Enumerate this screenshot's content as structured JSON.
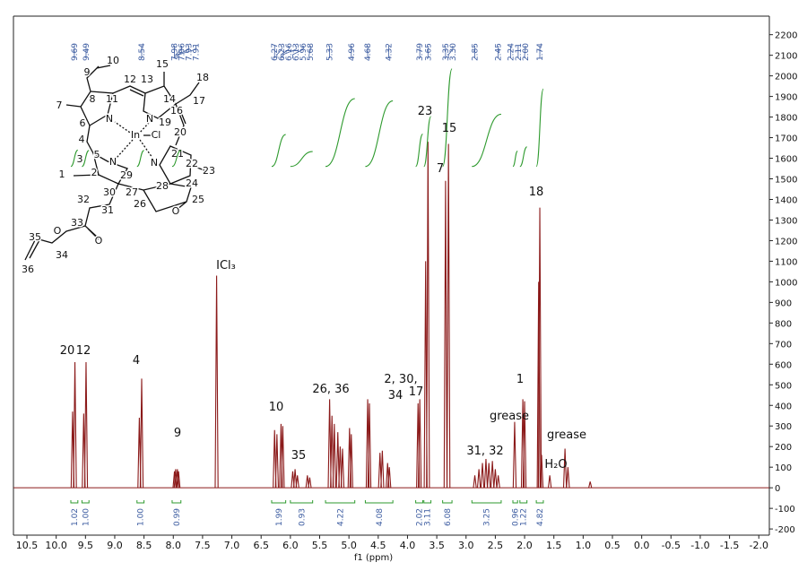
{
  "chart_data": {
    "type": "nmr",
    "x_label": "f1 (ppm)",
    "xlim": [
      10.73,
      -2.18
    ],
    "ylim": [
      -230,
      2290
    ],
    "xticks": [
      10.5,
      {
        "value": 10,
        "label": "10.0"
      },
      9.5,
      {
        "value": 9,
        "label": "9.0"
      },
      8.5,
      {
        "value": 8,
        "label": "8.0"
      },
      7.5,
      {
        "value": 7,
        "label": "7.0"
      },
      6.5,
      {
        "value": 6,
        "label": "6.0"
      },
      5.5,
      {
        "value": 5,
        "label": "5.0"
      },
      4.5,
      {
        "value": 4,
        "label": "4.0"
      },
      3.5,
      {
        "value": 3,
        "label": "3.0"
      },
      2.5,
      {
        "value": 2,
        "label": "2.0"
      },
      1.5,
      {
        "value": 1,
        "label": "1.0"
      },
      0.5,
      {
        "value": 0,
        "label": "0.0"
      },
      -0.5,
      {
        "value": -1,
        "label": "-1.0"
      },
      -1.5,
      {
        "value": -2,
        "label": "-2.0"
      }
    ],
    "yticks": [
      -200,
      -100,
      0,
      100,
      200,
      300,
      400,
      500,
      600,
      700,
      800,
      900,
      1000,
      1100,
      1200,
      1300,
      1400,
      1500,
      1600,
      1700,
      1800,
      1900,
      2000,
      2100,
      2200
    ],
    "color": "#8b1a1a",
    "x": [
      9.72,
      9.68,
      9.53,
      9.49,
      8.58,
      8.54,
      7.98,
      7.96,
      7.93,
      7.91,
      7.26,
      6.27,
      6.23,
      6.16,
      6.13,
      5.96,
      5.92,
      5.88,
      5.71,
      5.67,
      5.33,
      5.29,
      5.25,
      5.19,
      5.15,
      5.11,
      4.99,
      4.96,
      4.68,
      4.65,
      4.47,
      4.43,
      4.34,
      4.31,
      3.82,
      3.79,
      3.69,
      3.65,
      3.35,
      3.3,
      2.85,
      2.78,
      2.72,
      2.66,
      2.61,
      2.55,
      2.5,
      2.45,
      2.17,
      2.03,
      2.0,
      1.76,
      1.74,
      1.71,
      1.57,
      1.31,
      1.26,
      0.88
    ],
    "values": [
      370,
      610,
      360,
      610,
      340,
      530,
      80,
      90,
      90,
      80,
      1030,
      280,
      260,
      310,
      300,
      80,
      90,
      60,
      60,
      50,
      430,
      350,
      310,
      270,
      200,
      190,
      290,
      260,
      430,
      410,
      170,
      180,
      120,
      100,
      410,
      430,
      1100,
      1680,
      1490,
      1670,
      60,
      90,
      120,
      140,
      120,
      130,
      90,
      60,
      320,
      430,
      420,
      1000,
      1360,
      160,
      60,
      190,
      100,
      30
    ],
    "peak_labels": [
      9.69,
      9.49,
      8.54,
      7.98,
      7.96,
      7.93,
      7.91,
      6.27,
      6.23,
      6.16,
      6.13,
      5.96,
      5.68,
      5.33,
      4.96,
      4.68,
      4.32,
      3.79,
      3.65,
      3.35,
      {
        "value": 3.3,
        "label": "3.30"
      },
      2.85,
      2.45,
      2.24,
      2.11,
      {
        "value": 2,
        "label": "2.00"
      },
      1.74
    ],
    "integrals": [
      {
        "value": 1.02,
        "from": 9.75,
        "to": 9.63
      },
      {
        "value": 1,
        "label": "1.00",
        "from": 9.56,
        "to": 9.44
      },
      {
        "value": 1,
        "label": "1.00",
        "from": 8.62,
        "to": 8.5
      },
      {
        "value": 0.99,
        "from": 8.02,
        "to": 7.87
      },
      {
        "value": 1.99,
        "from": 6.32,
        "to": 6.08
      },
      {
        "value": 0.93,
        "from": 6.0,
        "to": 5.62
      },
      {
        "value": 4.22,
        "from": 5.4,
        "to": 4.9
      },
      {
        "value": 4.08,
        "from": 4.72,
        "to": 4.25
      },
      {
        "value": 2.02,
        "from": 3.86,
        "to": 3.74
      },
      {
        "value": 3.11,
        "from": 3.72,
        "to": 3.6
      },
      {
        "value": 6.08,
        "from": 3.4,
        "to": 3.24
      },
      {
        "value": 3.25,
        "from": 2.9,
        "to": 2.4
      },
      {
        "value": 0.96,
        "from": 2.2,
        "to": 2.12
      },
      {
        "value": 1.22,
        "from": 2.08,
        "to": 1.96
      },
      {
        "value": 4.82,
        "from": 1.8,
        "to": 1.68
      }
    ],
    "annotations": [
      "20",
      "12",
      "4",
      "9",
      "ICl₃",
      "10",
      "35",
      "26, 36",
      "2, 30,",
      "34",
      "17",
      "23",
      "7",
      "15",
      "18",
      "31, 32",
      "grease",
      "1",
      "H₂O",
      "grease"
    ]
  },
  "structure": {
    "labels": [
      "9",
      "10",
      "12",
      "13",
      "15",
      "18",
      "8",
      "11",
      "14",
      "16",
      "17",
      "7",
      "6",
      "N",
      "N",
      "19",
      "In",
      "Cl",
      "20",
      "4",
      "5",
      "21",
      "3",
      "N",
      "N",
      "22",
      "23",
      "1",
      "2",
      "29",
      "24",
      "30",
      "27",
      "28",
      "25",
      "32",
      "31",
      "26",
      "O",
      "33",
      "O",
      "O",
      "35",
      "34",
      "36"
    ]
  }
}
